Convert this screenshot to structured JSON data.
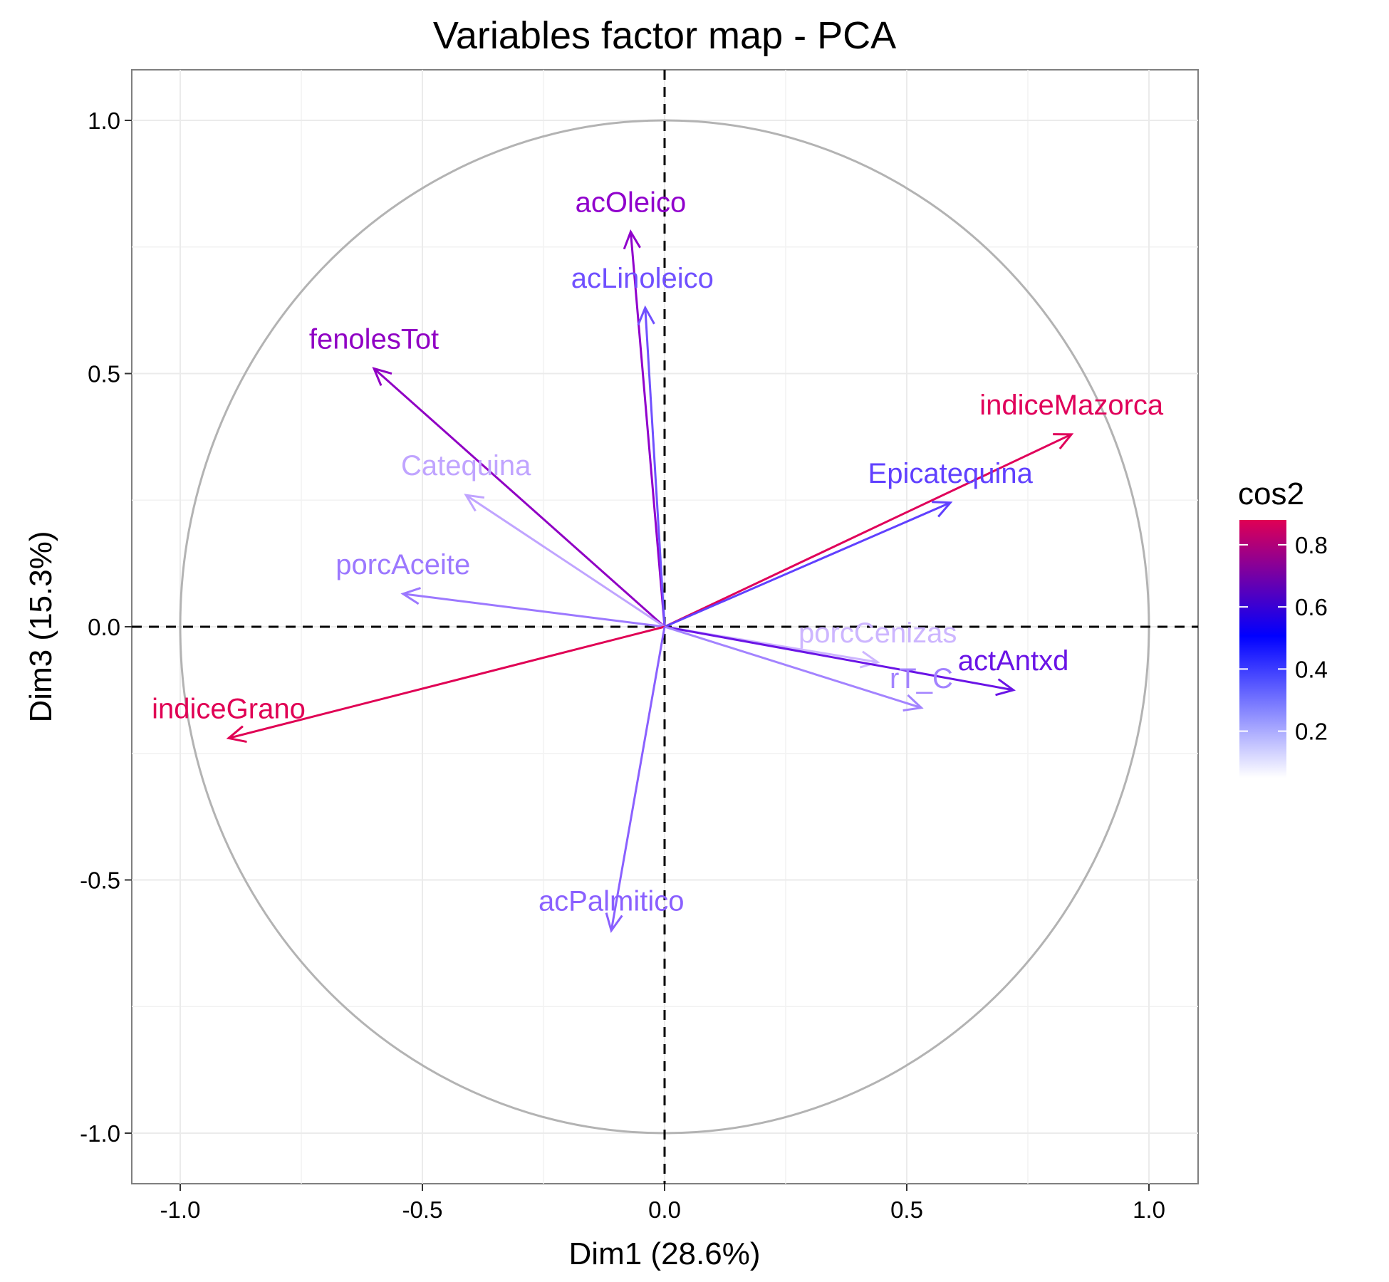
{
  "chart_data": {
    "type": "scatter",
    "subtype": "pca-variables-correlation-circle",
    "title": "Variables factor map - PCA",
    "xlabel": "Dim1 (28.6%)",
    "ylabel": "Dim3 (15.3%)",
    "xlim": [
      -1.1,
      1.1
    ],
    "ylim": [
      -1.1,
      1.1
    ],
    "xticks": [
      -1.0,
      -0.5,
      0.0,
      0.5,
      1.0
    ],
    "yticks": [
      -1.0,
      -0.5,
      0.0,
      0.5,
      1.0
    ],
    "xtick_labels": [
      "-1.0",
      "-0.5",
      "0.0",
      "0.5",
      "1.0"
    ],
    "ytick_labels": [
      "-1.0",
      "-0.5",
      "0.0",
      "0.5",
      "1.0"
    ],
    "grid": true,
    "unit_circle": true,
    "reference_lines": "dashed at x=0 and y=0",
    "color_by": "cos2",
    "legend": {
      "title": "cos2",
      "placement": "right",
      "ticks": [
        0.2,
        0.4,
        0.6,
        0.8
      ],
      "tick_labels": [
        "0.2",
        "0.4",
        "0.6",
        "0.8"
      ],
      "range": [
        0.05,
        0.88
      ],
      "gradient": [
        "#ffffff",
        "#0000ff",
        "#e00054"
      ]
    },
    "variables": [
      {
        "name": "acOleico",
        "x": -0.07,
        "y": 0.78,
        "color": "#9000cc"
      },
      {
        "name": "acLinoleico",
        "x": -0.04,
        "y": 0.63,
        "color": "#7050ff"
      },
      {
        "name": "fenolesTot",
        "x": -0.6,
        "y": 0.51,
        "color": "#9000c4"
      },
      {
        "name": "indiceMazorca",
        "x": 0.84,
        "y": 0.38,
        "color": "#e0005a"
      },
      {
        "name": "Epicatequina",
        "x": 0.59,
        "y": 0.245,
        "color": "#6040ff"
      },
      {
        "name": "Catequina",
        "x": -0.41,
        "y": 0.26,
        "color": "#c0a4ff"
      },
      {
        "name": "porcAceite",
        "x": -0.54,
        "y": 0.065,
        "color": "#9c78ff"
      },
      {
        "name": "porcCenizas",
        "x": 0.44,
        "y": -0.07,
        "color": "#cdb6ff"
      },
      {
        "name": "actAntxd",
        "x": 0.72,
        "y": -0.125,
        "color": "#6a14e6"
      },
      {
        "name": "rT_C",
        "x": 0.53,
        "y": -0.16,
        "color": "#a383ff"
      },
      {
        "name": "indiceGrano",
        "x": -0.9,
        "y": -0.22,
        "color": "#e00054"
      },
      {
        "name": "acPalmitico",
        "x": -0.11,
        "y": -0.6,
        "color": "#8a60ff"
      }
    ]
  }
}
